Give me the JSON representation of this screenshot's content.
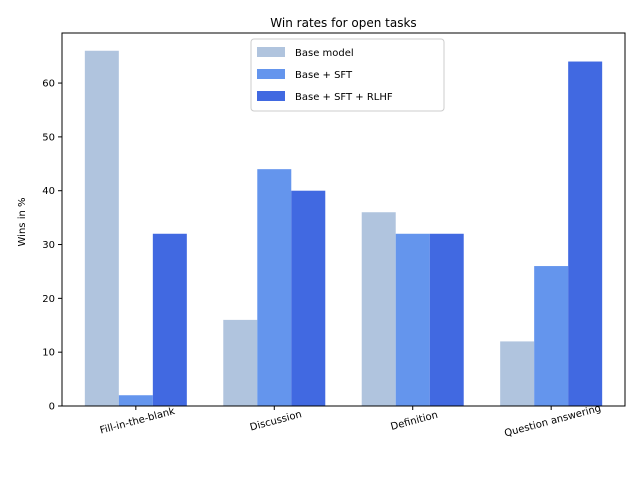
{
  "chart_data": {
    "type": "bar",
    "title": "Win rates for open tasks",
    "xlabel": "",
    "ylabel": "Wins in %",
    "categories": [
      "Fill-in-the-blank",
      "Discussion",
      "Definition",
      "Question answering"
    ],
    "series": [
      {
        "name": "Base model",
        "values": [
          66,
          16,
          36,
          12
        ],
        "color": "#b0c4de"
      },
      {
        "name": "Base + SFT",
        "values": [
          2,
          44,
          32,
          26
        ],
        "color": "#6495ed"
      },
      {
        "name": "Base + SFT + RLHF",
        "values": [
          32,
          40,
          32,
          64
        ],
        "color": "#4169e1"
      }
    ],
    "ylim": [
      0,
      69.3
    ],
    "yticks": [
      0,
      10,
      20,
      30,
      40,
      50,
      60
    ],
    "grid": false,
    "legend": "upper center",
    "xtick_rotation": 15
  }
}
